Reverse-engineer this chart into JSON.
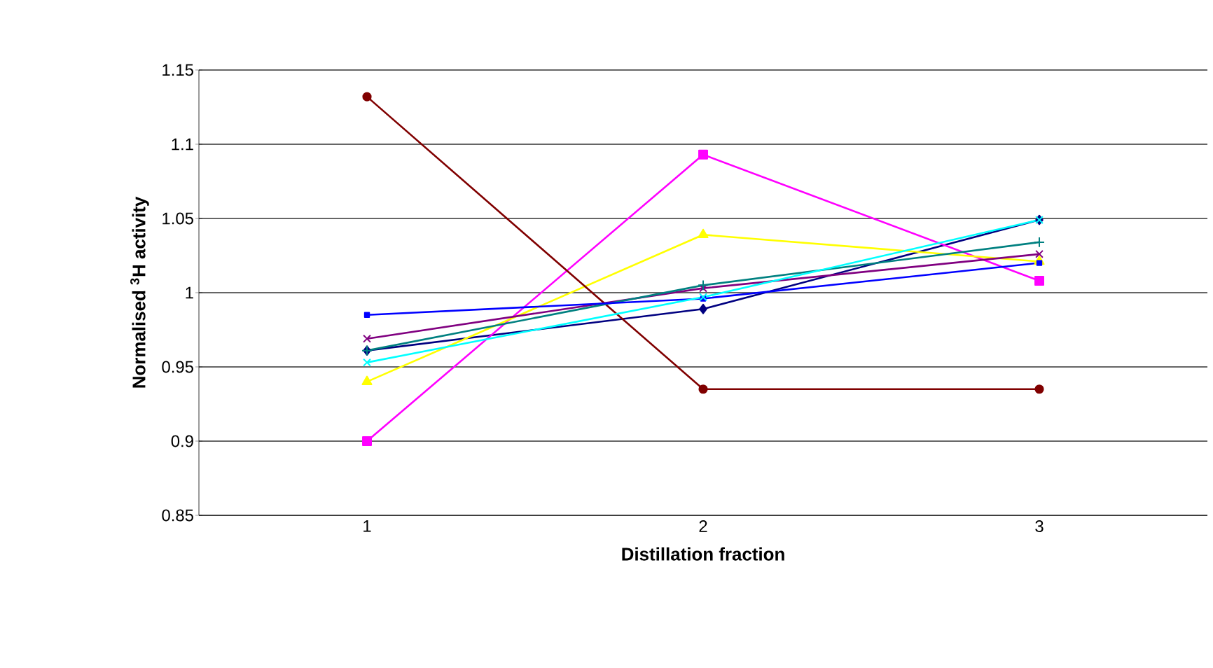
{
  "chart_data": {
    "type": "line",
    "xlabel": "Distillation fraction",
    "ylabel": "Normalised $^{3}$H activity",
    "categories": [
      "1",
      "2",
      "3"
    ],
    "ylim": [
      0.85,
      1.15
    ],
    "yticks": [
      0.85,
      0.9,
      0.95,
      1,
      1.05,
      1.1,
      1.15
    ],
    "grid": "y",
    "series": [
      {
        "color": "#000080",
        "marker": "diamond",
        "values": [
          0.961,
          0.989,
          1.049
        ]
      },
      {
        "color": "#ff00ff",
        "marker": "square",
        "values": [
          0.9,
          1.093,
          1.008
        ]
      },
      {
        "color": "#ffff00",
        "marker": "triangle",
        "values": [
          0.94,
          1.039,
          1.021
        ]
      },
      {
        "color": "#800080",
        "marker": "cross",
        "values": [
          0.969,
          1.003,
          1.026
        ]
      },
      {
        "color": "#800000",
        "marker": "circle",
        "values": [
          1.132,
          0.935,
          0.935
        ]
      },
      {
        "color": "#008080",
        "marker": "plus",
        "values": [
          0.961,
          1.005,
          1.034
        ]
      },
      {
        "color": "#0000ff",
        "marker": "square",
        "values": [
          0.985,
          0.996,
          1.02
        ]
      },
      {
        "color": "#00ffff",
        "marker": "cross",
        "values": [
          0.953,
          0.997,
          1.049
        ]
      }
    ]
  }
}
